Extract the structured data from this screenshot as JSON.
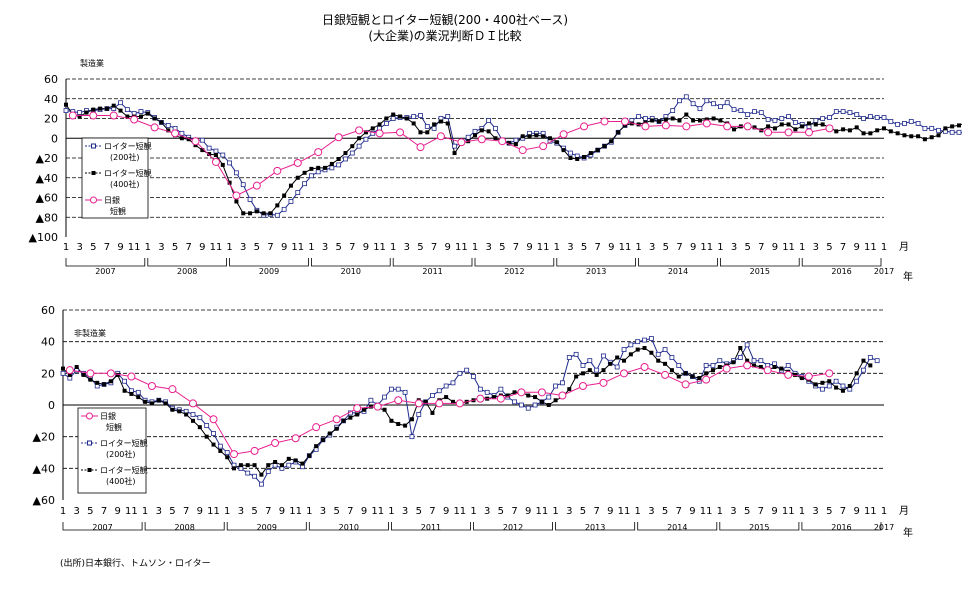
{
  "figure": {
    "title_line1": "日銀短観とロイター短観(200・400社ベース)",
    "title_line2": "(大企業)の業況判断ＤＩ比較",
    "source": "(出所)日本銀行、トムソン・ロイター"
  },
  "colors": {
    "reuters200": "#1f2a8c",
    "reuters400": "#000000",
    "boj": "#e8208f"
  },
  "chart_data": [
    {
      "type": "line",
      "label": "製造業",
      "ylim": [
        -100,
        60
      ],
      "yticks": [
        {
          "v": 60,
          "t": "60"
        },
        {
          "v": 40,
          "t": "40"
        },
        {
          "v": 20,
          "t": "20"
        },
        {
          "v": 0,
          "t": "0"
        },
        {
          "v": -20,
          "t": "▲20"
        },
        {
          "v": -40,
          "t": "▲40"
        },
        {
          "v": -60,
          "t": "▲60"
        },
        {
          "v": -80,
          "t": "▲80"
        },
        {
          "v": -100,
          "t": "▲100"
        }
      ],
      "xunit": "月",
      "year_label": "年",
      "month_ticks": [
        "1",
        "3",
        "5",
        "7",
        "9",
        "11",
        "1",
        "3",
        "5",
        "7",
        "9",
        "11",
        "1",
        "3",
        "5",
        "7",
        "9",
        "11",
        "1",
        "3",
        "5",
        "7",
        "9",
        "11",
        "1",
        "3",
        "5",
        "7",
        "9",
        "11",
        "1",
        "3",
        "5",
        "7",
        "9",
        "11",
        "1",
        "3",
        "5",
        "7",
        "9",
        "11",
        "1",
        "3",
        "5",
        "7",
        "9",
        "11",
        "1",
        "3",
        "5",
        "7",
        "9",
        "11",
        "1",
        "3",
        "5",
        "7",
        "9",
        "11",
        "1"
      ],
      "years": [
        "2007",
        "2008",
        "2009",
        "2010",
        "2011",
        "2012",
        "2013",
        "2014",
        "2015",
        "2016",
        "2017"
      ],
      "legend": {
        "r200": [
          "ロイター短観",
          "(200社)"
        ],
        "r400": [
          "ロイター短観",
          "(400社)"
        ],
        "boj": [
          "日銀",
          "短観"
        ]
      },
      "series": {
        "reuters200": [
          28,
          27,
          26,
          28,
          28,
          29,
          30,
          30,
          36,
          29,
          25,
          27,
          26,
          21,
          16,
          13,
          10,
          5,
          1,
          -2,
          -2,
          -10,
          -13,
          -17,
          -25,
          -35,
          -47,
          -62,
          -73,
          -78,
          -77,
          -78,
          -72,
          -64,
          -55,
          -46,
          -38,
          -34,
          -32,
          -30,
          -27,
          -21,
          -15,
          -8,
          -1,
          5,
          10,
          15,
          20,
          21,
          21,
          22,
          23,
          12,
          10,
          20,
          22,
          -8,
          -5,
          1,
          7,
          10,
          18,
          10,
          -2,
          -5,
          -2,
          0,
          5,
          5,
          5,
          -3,
          -5,
          -10,
          -15,
          -18,
          -20,
          -17,
          -12,
          -8,
          -4,
          6,
          13,
          18,
          22,
          20,
          20,
          17,
          22,
          28,
          38,
          42,
          35,
          30,
          38,
          35,
          32,
          36,
          29,
          28,
          24,
          27,
          26,
          19,
          18,
          20,
          22,
          16,
          14,
          12,
          18,
          20,
          21,
          27,
          27,
          26,
          24,
          20,
          22,
          21,
          21,
          17,
          14,
          15,
          17,
          15,
          10,
          10,
          8,
          7,
          6,
          6,
          5,
          4,
          8,
          12,
          16,
          18,
          16
        ],
        "reuters400": [
          34,
          24,
          22,
          26,
          29,
          30,
          30,
          33,
          28,
          22,
          22,
          22,
          25,
          20,
          16,
          8,
          3,
          0,
          -1,
          -7,
          -12,
          -16,
          -17,
          -27,
          -45,
          -64,
          -76,
          -76,
          -74,
          -76,
          -76,
          -68,
          -58,
          -48,
          -40,
          -35,
          -31,
          -30,
          -30,
          -26,
          -21,
          -15,
          -8,
          0,
          6,
          10,
          14,
          20,
          24,
          22,
          20,
          15,
          6,
          6,
          14,
          17,
          15,
          -15,
          -5,
          -3,
          3,
          8,
          7,
          0,
          -3,
          -5,
          -6,
          2,
          2,
          3,
          2,
          0,
          -4,
          -12,
          -20,
          -21,
          -19,
          -15,
          -12,
          -8,
          -3,
          6,
          13,
          15,
          14,
          16,
          18,
          17,
          19,
          20,
          18,
          24,
          18,
          18,
          19,
          20,
          18,
          15,
          9,
          12,
          11,
          11,
          8,
          12,
          10,
          14,
          14,
          9,
          12,
          15,
          14,
          14,
          11,
          7,
          9,
          8,
          11,
          5,
          5,
          8,
          10,
          7,
          5,
          3,
          2,
          2,
          -1,
          1,
          3,
          10,
          12,
          13,
          16,
          18,
          20
        ],
        "boj": [
          {
            "m": 2,
            "v": 23
          },
          {
            "m": 5,
            "v": 23
          },
          {
            "m": 8,
            "v": 23
          },
          {
            "m": 11,
            "v": 19
          },
          {
            "m": 14,
            "v": 11
          },
          {
            "m": 17,
            "v": 5
          },
          {
            "m": 20,
            "v": -3
          },
          {
            "m": 23,
            "v": -24
          },
          {
            "m": 26,
            "v": -58
          },
          {
            "m": 29,
            "v": -48
          },
          {
            "m": 32,
            "v": -33
          },
          {
            "m": 35,
            "v": -25
          },
          {
            "m": 38,
            "v": -14
          },
          {
            "m": 41,
            "v": 1
          },
          {
            "m": 44,
            "v": 8
          },
          {
            "m": 47,
            "v": 5
          },
          {
            "m": 50,
            "v": 6
          },
          {
            "m": 53,
            "v": -9
          },
          {
            "m": 56,
            "v": 2
          },
          {
            "m": 59,
            "v": -4
          },
          {
            "m": 62,
            "v": -1
          },
          {
            "m": 65,
            "v": -3
          },
          {
            "m": 68,
            "v": -12
          },
          {
            "m": 71,
            "v": -8
          },
          {
            "m": 74,
            "v": 4
          },
          {
            "m": 77,
            "v": 12
          },
          {
            "m": 80,
            "v": 17
          },
          {
            "m": 83,
            "v": 17
          },
          {
            "m": 86,
            "v": 12
          },
          {
            "m": 89,
            "v": 13
          },
          {
            "m": 92,
            "v": 12
          },
          {
            "m": 95,
            "v": 15
          },
          {
            "m": 98,
            "v": 12
          },
          {
            "m": 101,
            "v": 12
          },
          {
            "m": 104,
            "v": 6
          },
          {
            "m": 107,
            "v": 6
          },
          {
            "m": 110,
            "v": 6
          },
          {
            "m": 113,
            "v": 10
          }
        ]
      }
    },
    {
      "type": "line",
      "label": "非製造業",
      "ylim": [
        -60,
        60
      ],
      "yticks": [
        {
          "v": 60,
          "t": "60"
        },
        {
          "v": 40,
          "t": "40"
        },
        {
          "v": 20,
          "t": "20"
        },
        {
          "v": 0,
          "t": "0"
        },
        {
          "v": -20,
          "t": "▲20"
        },
        {
          "v": -40,
          "t": "▲40"
        },
        {
          "v": -60,
          "t": "▲60"
        }
      ],
      "xunit": "月",
      "year_label": "年",
      "month_ticks": [
        "1",
        "3",
        "5",
        "7",
        "9",
        "11",
        "1",
        "3",
        "5",
        "7",
        "9",
        "11",
        "1",
        "3",
        "5",
        "7",
        "9",
        "11",
        "1",
        "3",
        "5",
        "7",
        "9",
        "11",
        "1",
        "3",
        "5",
        "7",
        "9",
        "11",
        "1",
        "3",
        "5",
        "7",
        "9",
        "11",
        "1",
        "3",
        "5",
        "7",
        "9",
        "11",
        "1",
        "3",
        "5",
        "7",
        "9",
        "11",
        "1",
        "3",
        "5",
        "7",
        "9",
        "11",
        "1",
        "3",
        "5",
        "7",
        "9",
        "11",
        "1"
      ],
      "years": [
        "2007",
        "2008",
        "2009",
        "2010",
        "2011",
        "2012",
        "2013",
        "2014",
        "2015",
        "2016",
        "2017"
      ],
      "legend": {
        "boj": [
          "日銀",
          "短観"
        ],
        "r200": [
          "ロイター短観",
          "(200社)"
        ],
        "r400": [
          "ロイター短観",
          "(400社)"
        ]
      },
      "series": {
        "reuters200": [
          20,
          17,
          22,
          20,
          17,
          12,
          13,
          14,
          20,
          15,
          9,
          8,
          3,
          2,
          3,
          2,
          -2,
          -3,
          -4,
          -6,
          -8,
          -13,
          -18,
          -26,
          -30,
          -38,
          -40,
          -43,
          -45,
          -50,
          -42,
          -38,
          -40,
          -38,
          -36,
          -39,
          -32,
          -28,
          -22,
          -19,
          -14,
          -10,
          -5,
          -5,
          -4,
          3,
          0,
          5,
          10,
          10,
          8,
          -20,
          -6,
          2,
          6,
          9,
          12,
          14,
          20,
          22,
          18,
          10,
          8,
          6,
          10,
          5,
          2,
          0,
          -2,
          0,
          2,
          5,
          12,
          14,
          30,
          32,
          25,
          28,
          22,
          31,
          27,
          24,
          35,
          38,
          40,
          41,
          42,
          32,
          35,
          30,
          25,
          20,
          18,
          15,
          25,
          25,
          28,
          26,
          28,
          30,
          38,
          28,
          28,
          25,
          26,
          22,
          25,
          20,
          18,
          15,
          12,
          10,
          12,
          15,
          12,
          10,
          15,
          22,
          30,
          28
        ],
        "reuters400": [
          23,
          19,
          24,
          19,
          16,
          14,
          13,
          15,
          19,
          9,
          7,
          5,
          2,
          1,
          3,
          1,
          -3,
          -4,
          -6,
          -10,
          -14,
          -20,
          -25,
          -29,
          -33,
          -40,
          -38,
          -38,
          -38,
          -44,
          -38,
          -36,
          -38,
          -34,
          -35,
          -37,
          -32,
          -26,
          -22,
          -18,
          -15,
          -10,
          -8,
          -6,
          -3,
          -1,
          -2,
          -3,
          -10,
          -12,
          -13,
          -9,
          3,
          2,
          -5,
          3,
          5,
          2,
          1,
          2,
          3,
          5,
          4,
          5,
          6,
          6,
          8,
          8,
          6,
          5,
          2,
          0,
          3,
          5,
          10,
          18,
          20,
          22,
          19,
          22,
          26,
          30,
          28,
          32,
          35,
          36,
          33,
          28,
          26,
          22,
          18,
          20,
          18,
          17,
          20,
          22,
          24,
          25,
          27,
          36,
          28,
          25,
          24,
          22,
          24,
          23,
          21,
          19,
          17,
          16,
          13,
          14,
          15,
          11,
          9,
          12,
          20,
          28,
          25
        ],
        "boj": [
          {
            "m": 2,
            "v": 22
          },
          {
            "m": 5,
            "v": 20
          },
          {
            "m": 8,
            "v": 20
          },
          {
            "m": 11,
            "v": 18
          },
          {
            "m": 14,
            "v": 12
          },
          {
            "m": 17,
            "v": 10
          },
          {
            "m": 20,
            "v": 1
          },
          {
            "m": 23,
            "v": -9
          },
          {
            "m": 26,
            "v": -31
          },
          {
            "m": 29,
            "v": -29
          },
          {
            "m": 32,
            "v": -24
          },
          {
            "m": 35,
            "v": -21
          },
          {
            "m": 38,
            "v": -14
          },
          {
            "m": 41,
            "v": -9
          },
          {
            "m": 44,
            "v": -2
          },
          {
            "m": 47,
            "v": -1
          },
          {
            "m": 50,
            "v": 3
          },
          {
            "m": 53,
            "v": 1
          },
          {
            "m": 56,
            "v": 1
          },
          {
            "m": 59,
            "v": 1
          },
          {
            "m": 62,
            "v": 4
          },
          {
            "m": 65,
            "v": 4
          },
          {
            "m": 68,
            "v": 8
          },
          {
            "m": 71,
            "v": 8
          },
          {
            "m": 74,
            "v": 6
          },
          {
            "m": 77,
            "v": 12
          },
          {
            "m": 80,
            "v": 14
          },
          {
            "m": 83,
            "v": 20
          },
          {
            "m": 86,
            "v": 24
          },
          {
            "m": 89,
            "v": 19
          },
          {
            "m": 92,
            "v": 13
          },
          {
            "m": 95,
            "v": 16
          },
          {
            "m": 98,
            "v": 23
          },
          {
            "m": 101,
            "v": 25
          },
          {
            "m": 104,
            "v": 22
          },
          {
            "m": 107,
            "v": 19
          },
          {
            "m": 110,
            "v": 18
          },
          {
            "m": 113,
            "v": 20
          }
        ]
      }
    }
  ]
}
